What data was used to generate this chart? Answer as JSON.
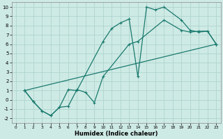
{
  "xlabel": "Humidex (Indice chaleur)",
  "xlim": [
    -0.5,
    23.5
  ],
  "ylim": [
    -2.5,
    10.5
  ],
  "xticks": [
    0,
    1,
    2,
    3,
    4,
    5,
    6,
    7,
    8,
    9,
    10,
    11,
    12,
    13,
    14,
    15,
    16,
    17,
    18,
    19,
    20,
    21,
    22,
    23
  ],
  "yticks": [
    -2,
    -1,
    0,
    1,
    2,
    3,
    4,
    5,
    6,
    7,
    8,
    9,
    10
  ],
  "bg_color": "#ceeae5",
  "grid_color": "#aed4ce",
  "line_color": "#1a7a6e",
  "line1_x": [
    1,
    2,
    3,
    4,
    5,
    6,
    7,
    10,
    11,
    12,
    13,
    14,
    15,
    16,
    17,
    19,
    20,
    21,
    22,
    23
  ],
  "line1_y": [
    1.0,
    -0.2,
    -1.2,
    -1.7,
    -0.8,
    1.1,
    1.0,
    6.3,
    7.7,
    8.3,
    8.7,
    2.5,
    10.0,
    9.7,
    10.0,
    8.6,
    7.5,
    7.3,
    7.4,
    6.0
  ],
  "line2_x": [
    1,
    2,
    3,
    4,
    5,
    6,
    7,
    8,
    9,
    10,
    13,
    14,
    17,
    19,
    20,
    21,
    22,
    23
  ],
  "line2_y": [
    1.0,
    -0.2,
    -1.2,
    -1.7,
    -0.8,
    -0.7,
    1.1,
    0.8,
    -0.3,
    2.5,
    6.0,
    6.3,
    8.6,
    7.5,
    7.3,
    7.4,
    7.4,
    6.0
  ],
  "line3_x": [
    1,
    23
  ],
  "line3_y": [
    1.0,
    6.0
  ]
}
